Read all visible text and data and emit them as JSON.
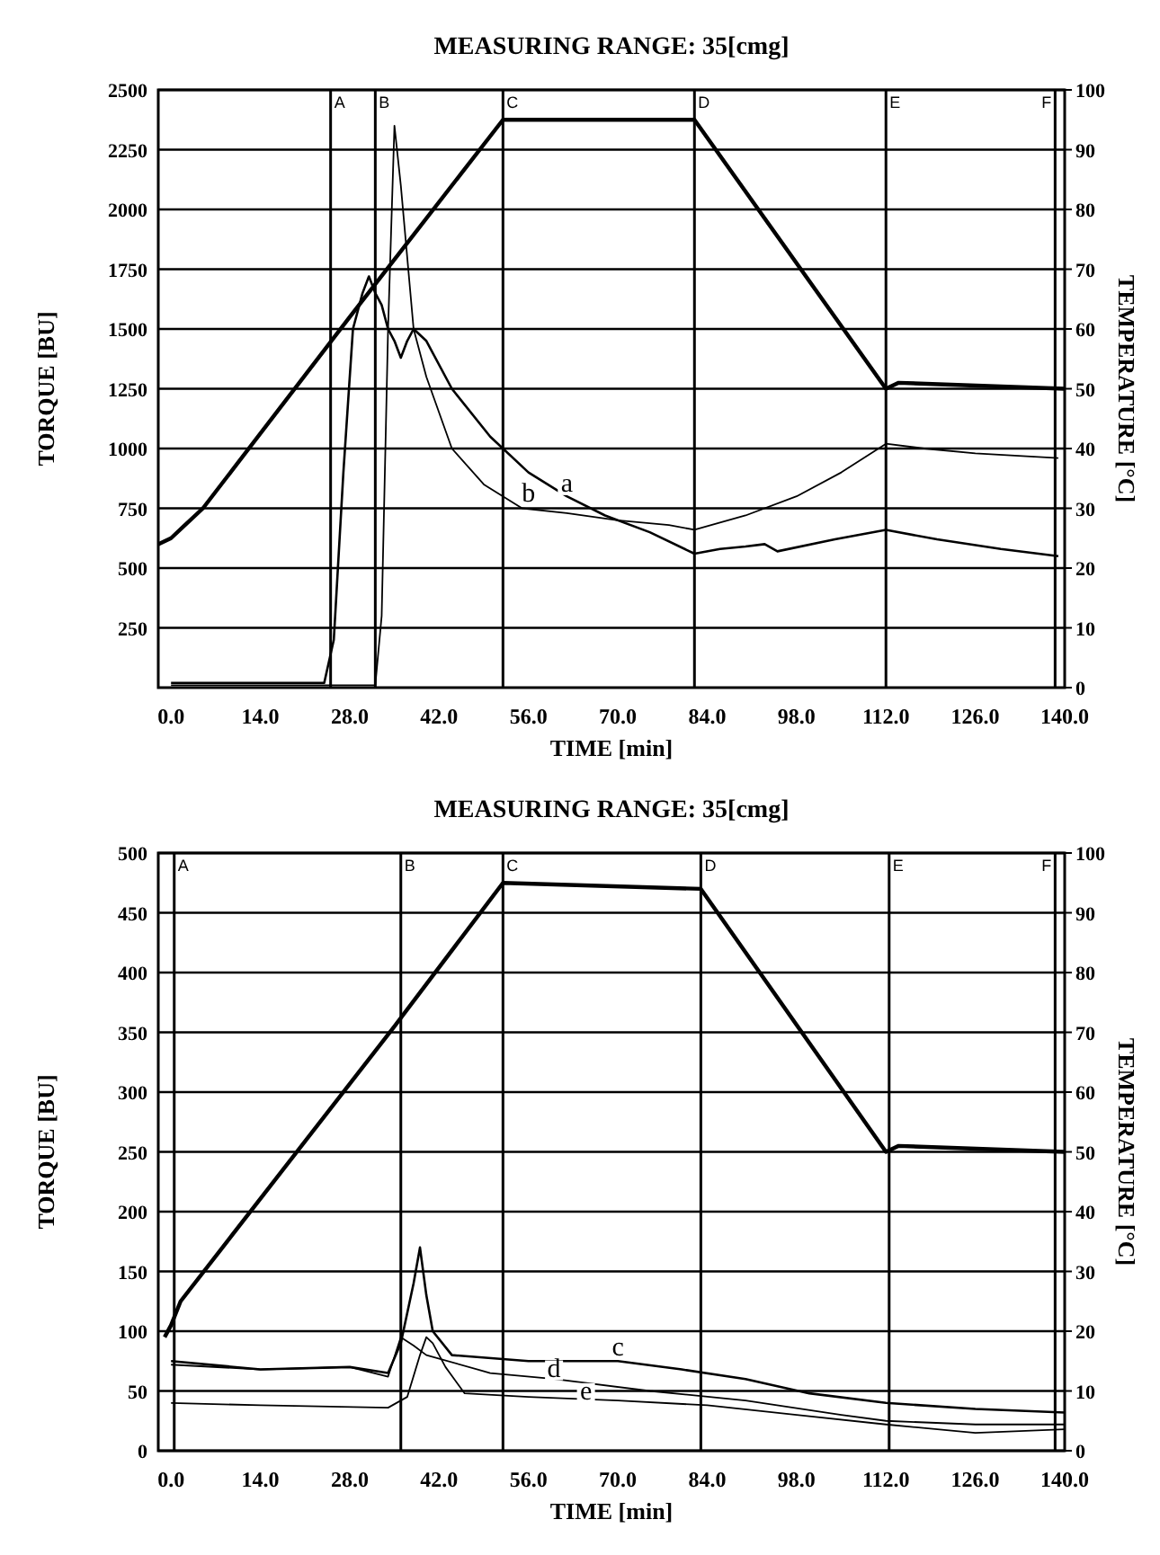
{
  "chart_data": [
    {
      "type": "line",
      "title": "MEASURING RANGE: 35[cmg]",
      "xlabel": "TIME  [min]",
      "ylabel": "TORQUE [BU]",
      "y2label": "TEMPERATURE [°C]",
      "xlim": [
        -2,
        140
      ],
      "xticks": [
        {
          "value": 0,
          "label": "0.0"
        },
        {
          "value": 14,
          "label": "14.0"
        },
        {
          "value": 28,
          "label": "28.0"
        },
        {
          "value": 42,
          "label": "42.0"
        },
        {
          "value": 56,
          "label": "56.0"
        },
        {
          "value": 70,
          "label": "70.0"
        },
        {
          "value": 84,
          "label": "84.0"
        },
        {
          "value": 98,
          "label": "98.0"
        },
        {
          "value": 112,
          "label": "112.0"
        },
        {
          "value": 126,
          "label": "126.0"
        },
        {
          "value": 140,
          "label": "140.0"
        }
      ],
      "ylim": [
        0,
        2500
      ],
      "yticks": [
        250,
        500,
        750,
        1000,
        1250,
        1500,
        1750,
        2000,
        2250,
        2500
      ],
      "y2lim": [
        0,
        100
      ],
      "y2ticks": [
        0,
        10,
        20,
        30,
        40,
        50,
        60,
        70,
        80,
        90,
        100
      ],
      "grid": "y",
      "series": [
        {
          "color": "#000000",
          "axis": "y2",
          "x": [
            -2,
            0,
            2,
            5,
            28,
            52,
            82,
            112,
            114,
            140
          ],
          "values": [
            24,
            25,
            27,
            30,
            62,
            95,
            95,
            50,
            51,
            50
          ]
        },
        {
          "color": "#000000",
          "x": [
            0,
            24,
            25.5,
            27,
            28.5,
            30,
            31,
            32,
            33,
            34,
            35,
            36,
            37,
            38,
            40,
            44,
            50,
            56,
            62,
            68,
            75,
            82,
            86,
            90,
            93,
            95,
            104,
            112,
            120,
            130,
            139
          ],
          "values": [
            20,
            20,
            200,
            900,
            1500,
            1650,
            1720,
            1650,
            1600,
            1500,
            1450,
            1380,
            1450,
            1500,
            1450,
            1250,
            1050,
            900,
            800,
            720,
            650,
            560,
            580,
            590,
            600,
            570,
            620,
            660,
            620,
            580,
            550
          ]
        },
        {
          "color": "#000000",
          "x": [
            0,
            32,
            33,
            34,
            35,
            36,
            37,
            38,
            40,
            44,
            49,
            55,
            62,
            70,
            78,
            82,
            90,
            98,
            105,
            112,
            118,
            126,
            139
          ],
          "values": [
            10,
            10,
            300,
            1500,
            2350,
            2100,
            1800,
            1500,
            1300,
            1000,
            850,
            750,
            730,
            700,
            680,
            660,
            720,
            800,
            900,
            1020,
            1000,
            980,
            960
          ]
        }
      ],
      "ref_lines": [
        {
          "axis": "x",
          "value": 25,
          "label": "A"
        },
        {
          "axis": "x",
          "value": 32,
          "label": "B"
        },
        {
          "axis": "x",
          "value": 52,
          "label": "C"
        },
        {
          "axis": "x",
          "value": 82,
          "label": "D"
        },
        {
          "axis": "x",
          "value": 112,
          "label": "E"
        },
        {
          "axis": "x",
          "value": 138.5,
          "label": "F"
        }
      ],
      "annotations": [
        {
          "text": "a",
          "x": 62,
          "y": 820
        },
        {
          "text": "b",
          "x": 56,
          "y": 780
        }
      ]
    },
    {
      "type": "line",
      "title": "MEASURING RANGE: 35[cmg]",
      "xlabel": "TIME  [min]",
      "ylabel": "TORQUE [BU]",
      "y2label": "TEMPERATURE [°C]",
      "xlim": [
        -2,
        140
      ],
      "xticks": [
        {
          "value": 0,
          "label": "0.0"
        },
        {
          "value": 14,
          "label": "14.0"
        },
        {
          "value": 28,
          "label": "28.0"
        },
        {
          "value": 42,
          "label": "42.0"
        },
        {
          "value": 56,
          "label": "56.0"
        },
        {
          "value": 70,
          "label": "70.0"
        },
        {
          "value": 84,
          "label": "84.0"
        },
        {
          "value": 98,
          "label": "98.0"
        },
        {
          "value": 112,
          "label": "112.0"
        },
        {
          "value": 126,
          "label": "126.0"
        },
        {
          "value": 140,
          "label": "140.0"
        }
      ],
      "ylim": [
        0,
        500
      ],
      "yticks": [
        0,
        50,
        100,
        150,
        200,
        250,
        300,
        350,
        400,
        450,
        500
      ],
      "y2lim": [
        0,
        100
      ],
      "y2ticks": [
        0,
        10,
        20,
        30,
        40,
        50,
        60,
        70,
        80,
        90,
        100
      ],
      "grid": "y",
      "series": [
        {
          "color": "#000000",
          "axis": "y2",
          "x": [
            -1,
            0,
            1.5,
            35,
            52,
            83,
            112,
            114,
            140
          ],
          "values": [
            19,
            21,
            25,
            71,
            95,
            94,
            50,
            51,
            50
          ]
        },
        {
          "color": "#000000",
          "x": [
            0,
            14,
            28,
            34,
            36,
            38,
            39,
            40,
            41,
            44,
            56,
            70,
            80,
            90,
            100,
            112,
            126,
            140
          ],
          "values": [
            75,
            68,
            70,
            65,
            90,
            140,
            170,
            130,
            100,
            80,
            75,
            75,
            68,
            60,
            48,
            40,
            35,
            32
          ]
        },
        {
          "color": "#000000",
          "x": [
            0,
            14,
            28,
            34,
            36,
            38,
            40,
            50,
            60,
            75,
            90,
            105,
            112,
            126,
            140
          ],
          "values": [
            72,
            68,
            70,
            62,
            95,
            88,
            80,
            65,
            60,
            50,
            42,
            30,
            25,
            22,
            22
          ]
        },
        {
          "color": "#000000",
          "x": [
            0,
            14,
            34,
            37,
            39,
            40,
            41,
            43,
            46,
            56,
            70,
            84,
            98,
            112,
            126,
            140
          ],
          "values": [
            40,
            38,
            36,
            45,
            80,
            95,
            90,
            70,
            48,
            45,
            42,
            38,
            30,
            22,
            15,
            18
          ]
        }
      ],
      "ref_lines": [
        {
          "axis": "x",
          "value": 0.5,
          "label": "A"
        },
        {
          "axis": "x",
          "value": 36,
          "label": "B"
        },
        {
          "axis": "x",
          "value": 52,
          "label": "C"
        },
        {
          "axis": "x",
          "value": 83,
          "label": "D"
        },
        {
          "axis": "x",
          "value": 112.5,
          "label": "E"
        },
        {
          "axis": "x",
          "value": 138.5,
          "label": "F"
        }
      ],
      "annotations": [
        {
          "text": "c",
          "x": 70,
          "y": 80
        },
        {
          "text": "d",
          "x": 60,
          "y": 62
        },
        {
          "text": "e",
          "x": 65,
          "y": 43
        }
      ]
    }
  ]
}
